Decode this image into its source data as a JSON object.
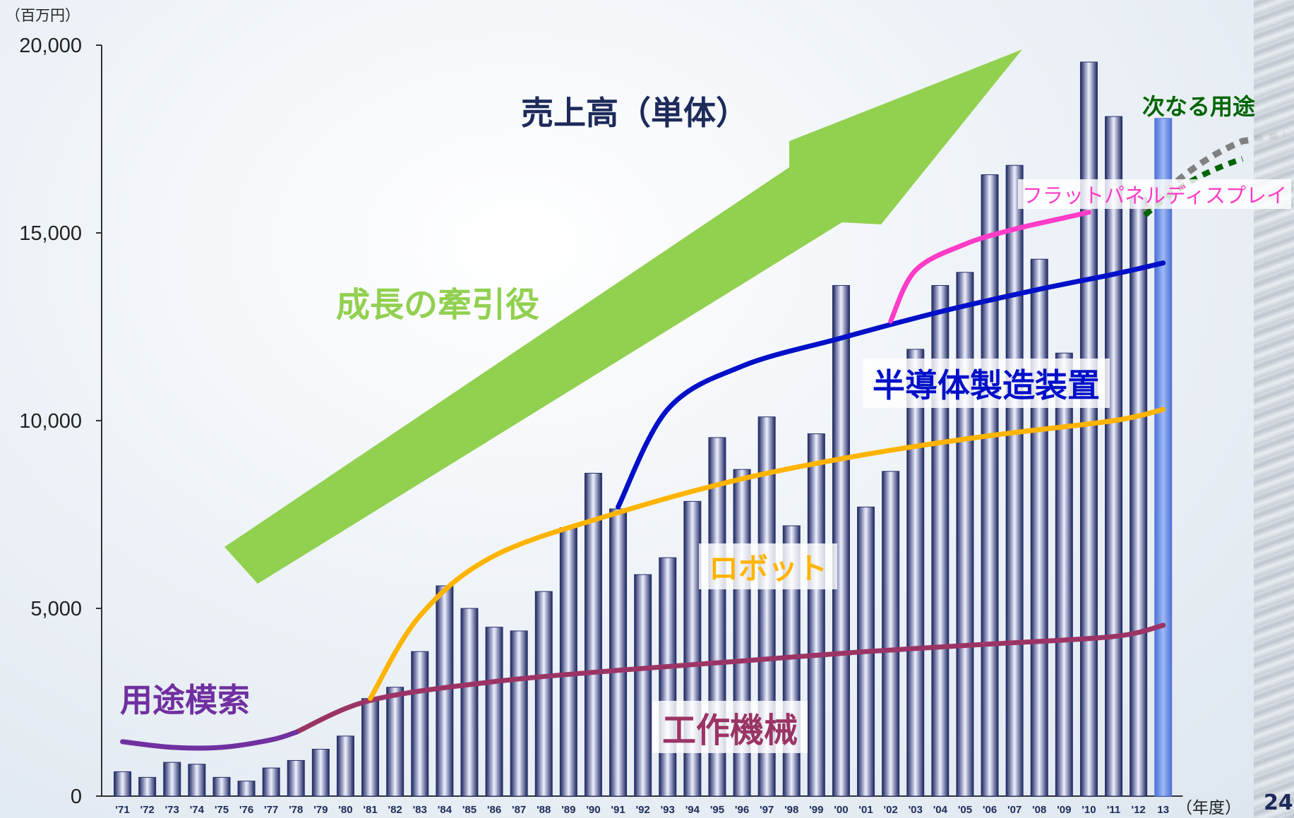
{
  "unit_label": "（百万円）",
  "year_unit_label": "（年度）",
  "page_number": "24",
  "colors": {
    "bar_fill_start": "#1b2560",
    "bar_fill_mid": "#eef0ff",
    "bar_highlight": "#6a8fe8",
    "arrow": "#92d050",
    "machine_tools": "#9b3465",
    "robots": "#ffb400",
    "semiconductor": "#0010c8",
    "flat_panel": "#ff3cc8",
    "exploring": "#7030a0",
    "next_gray": "#808080",
    "next_green": "#006400"
  },
  "annotations": {
    "sales_title": "売上高（単体）",
    "growth_driver": "成長の牽引役",
    "semiconductor": "半導体製造装置",
    "robots": "ロボット",
    "machine_tools": "工作機械",
    "exploring": "用途模索",
    "flat_panel": "フラットパネルディスプレイ",
    "next_use": "次なる用途"
  },
  "chart_data": {
    "type": "bar",
    "title": "売上高（単体）",
    "ylabel": "（百万円）",
    "xlabel": "（年度）",
    "ylim": [
      0,
      20000
    ],
    "y_ticks": [
      0,
      5000,
      10000,
      15000,
      20000
    ],
    "y_tick_labels": [
      "0",
      "5,000",
      "10,000",
      "15,000",
      "20,000"
    ],
    "categories": [
      "'71",
      "'72",
      "'73",
      "'74",
      "'75",
      "'76",
      "'77",
      "'78",
      "'79",
      "'80",
      "'81",
      "'82",
      "'83",
      "'84",
      "'85",
      "'86",
      "'87",
      "'88",
      "'89",
      "'90",
      "'91",
      "'92",
      "'93",
      "'94",
      "'95",
      "'96",
      "'97",
      "'98",
      "'99",
      "'00",
      "'01",
      "'02",
      "'03",
      "'04",
      "'05",
      "'06",
      "'07",
      "'08",
      "'09",
      "'10",
      "'11",
      "'12",
      "13"
    ],
    "values": [
      650,
      500,
      900,
      850,
      500,
      400,
      750,
      950,
      1250,
      1600,
      2600,
      2900,
      3850,
      5600,
      5000,
      4500,
      4400,
      5450,
      7150,
      8600,
      7650,
      5900,
      6350,
      7850,
      9550,
      8700,
      10100,
      7200,
      9650,
      13600,
      7700,
      8650,
      11900,
      13600,
      13950,
      16550,
      16800,
      14300,
      11800,
      19550,
      18100,
      15950,
      18050
    ],
    "highlight_index": 42,
    "lines": [
      {
        "name": "工作機械",
        "x": [
          "'78",
          "'81",
          "'86",
          "'91",
          "'96",
          "'01",
          "'06",
          "'11",
          "13"
        ],
        "y": [
          1700,
          2550,
          3050,
          3350,
          3600,
          3850,
          4050,
          4250,
          4550
        ]
      },
      {
        "name": "ロボット",
        "x": [
          "'81",
          "'83",
          "'86",
          "'91",
          "'96",
          "'01",
          "'06",
          "'11",
          "13"
        ],
        "y": [
          2600,
          4800,
          6400,
          7550,
          8450,
          9100,
          9600,
          10000,
          10300
        ]
      },
      {
        "name": "半導体製造装置",
        "x": [
          "'91",
          "'93",
          "'96",
          "'00",
          "'04",
          "'08",
          "'11",
          "13"
        ],
        "y": [
          7700,
          10300,
          11450,
          12200,
          12900,
          13500,
          13900,
          14200
        ]
      },
      {
        "name": "フラットパネルディスプレイ",
        "x": [
          "'02",
          "'03",
          "'05",
          "'07",
          "'09",
          "'10"
        ],
        "y": [
          12650,
          14000,
          14700,
          15100,
          15400,
          15550
        ]
      },
      {
        "name": "用途模索",
        "x": [
          "'71",
          "'73",
          "'75",
          "'77",
          "'78"
        ],
        "y": [
          1450,
          1300,
          1300,
          1500,
          1700
        ]
      }
    ],
    "grid": false,
    "legend": "none"
  }
}
